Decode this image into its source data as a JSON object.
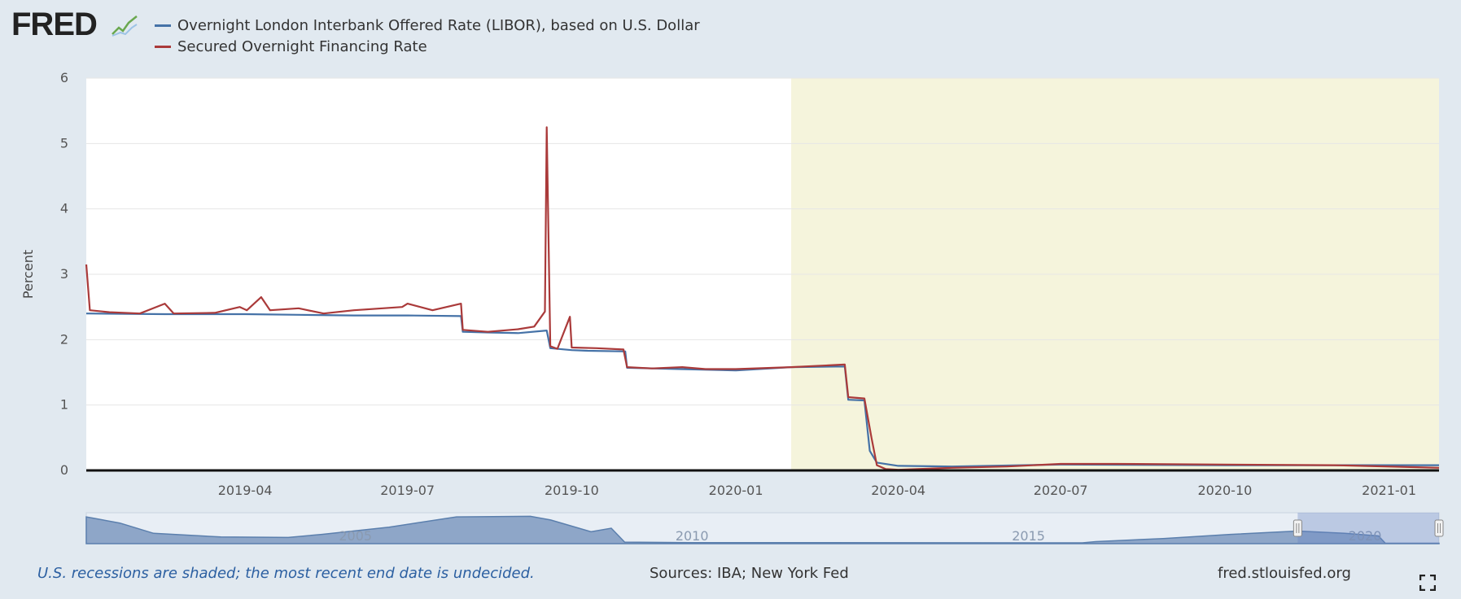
{
  "header": {
    "logo_text": "FRED",
    "logo_icon": "line-chart-icon"
  },
  "colors": {
    "libor": "#4572a7",
    "sofr": "#aa3a3a",
    "recession_fill": "#f5f4dc",
    "navigator_fill": "#8ea6c8",
    "navigator_line": "#5b7fad"
  },
  "chart_data": {
    "type": "line",
    "title": "",
    "xlabel": "",
    "ylabel": "Percent",
    "ylim": [
      0,
      6
    ],
    "yticks": [
      0,
      1,
      2,
      3,
      4,
      5,
      6
    ],
    "xlim": [
      "2019-01-02",
      "2021-01-29"
    ],
    "xticks": [
      {
        "date": "2019-04-01",
        "label": "2019-04"
      },
      {
        "date": "2019-07-01",
        "label": "2019-07"
      },
      {
        "date": "2019-10-01",
        "label": "2019-10"
      },
      {
        "date": "2020-01-01",
        "label": "2020-01"
      },
      {
        "date": "2020-04-01",
        "label": "2020-04"
      },
      {
        "date": "2020-07-01",
        "label": "2020-07"
      },
      {
        "date": "2020-10-01",
        "label": "2020-10"
      },
      {
        "date": "2021-01-01",
        "label": "2021-01"
      }
    ],
    "grid": true,
    "legend_position": "top-left",
    "recession": {
      "start": "2020-02-01",
      "end": "2021-01-29"
    },
    "series": [
      {
        "name": "Overnight London Interbank Offered Rate (LIBOR), based on U.S. Dollar",
        "color": "#4572a7",
        "points": [
          [
            "2019-01-02",
            2.4
          ],
          [
            "2019-02-15",
            2.39
          ],
          [
            "2019-04-01",
            2.39
          ],
          [
            "2019-05-01",
            2.38
          ],
          [
            "2019-06-01",
            2.37
          ],
          [
            "2019-07-01",
            2.37
          ],
          [
            "2019-07-31",
            2.36
          ],
          [
            "2019-08-01",
            2.12
          ],
          [
            "2019-08-15",
            2.11
          ],
          [
            "2019-09-01",
            2.1
          ],
          [
            "2019-09-17",
            2.14
          ],
          [
            "2019-09-19",
            1.87
          ],
          [
            "2019-10-01",
            1.84
          ],
          [
            "2019-10-10",
            1.83
          ],
          [
            "2019-10-31",
            1.82
          ],
          [
            "2019-11-01",
            1.57
          ],
          [
            "2019-12-01",
            1.55
          ],
          [
            "2020-01-01",
            1.53
          ],
          [
            "2020-02-01",
            1.58
          ],
          [
            "2020-03-02",
            1.59
          ],
          [
            "2020-03-04",
            1.08
          ],
          [
            "2020-03-13",
            1.07
          ],
          [
            "2020-03-16",
            0.3
          ],
          [
            "2020-03-20",
            0.12
          ],
          [
            "2020-04-01",
            0.07
          ],
          [
            "2020-05-01",
            0.06
          ],
          [
            "2020-07-01",
            0.09
          ],
          [
            "2020-10-01",
            0.08
          ],
          [
            "2021-01-29",
            0.08
          ]
        ]
      },
      {
        "name": "Secured Overnight Financing Rate",
        "color": "#aa3a3a",
        "points": [
          [
            "2019-01-02",
            3.15
          ],
          [
            "2019-01-04",
            2.45
          ],
          [
            "2019-01-15",
            2.42
          ],
          [
            "2019-02-01",
            2.4
          ],
          [
            "2019-02-15",
            2.55
          ],
          [
            "2019-02-20",
            2.4
          ],
          [
            "2019-03-15",
            2.41
          ],
          [
            "2019-03-29",
            2.5
          ],
          [
            "2019-04-02",
            2.45
          ],
          [
            "2019-04-10",
            2.65
          ],
          [
            "2019-04-15",
            2.45
          ],
          [
            "2019-05-01",
            2.48
          ],
          [
            "2019-05-15",
            2.4
          ],
          [
            "2019-06-01",
            2.45
          ],
          [
            "2019-06-28",
            2.5
          ],
          [
            "2019-07-01",
            2.55
          ],
          [
            "2019-07-15",
            2.45
          ],
          [
            "2019-07-31",
            2.55
          ],
          [
            "2019-08-01",
            2.15
          ],
          [
            "2019-08-15",
            2.12
          ],
          [
            "2019-09-01",
            2.16
          ],
          [
            "2019-09-10",
            2.2
          ],
          [
            "2019-09-16",
            2.43
          ],
          [
            "2019-09-17",
            5.25
          ],
          [
            "2019-09-19",
            1.9
          ],
          [
            "2019-09-23",
            1.86
          ],
          [
            "2019-09-30",
            2.35
          ],
          [
            "2019-10-01",
            1.88
          ],
          [
            "2019-10-15",
            1.87
          ],
          [
            "2019-10-30",
            1.85
          ],
          [
            "2019-11-01",
            1.58
          ],
          [
            "2019-11-15",
            1.56
          ],
          [
            "2019-12-02",
            1.58
          ],
          [
            "2019-12-15",
            1.55
          ],
          [
            "2020-01-01",
            1.55
          ],
          [
            "2020-02-01",
            1.58
          ],
          [
            "2020-03-02",
            1.62
          ],
          [
            "2020-03-04",
            1.12
          ],
          [
            "2020-03-13",
            1.1
          ],
          [
            "2020-03-17",
            0.5
          ],
          [
            "2020-03-20",
            0.08
          ],
          [
            "2020-03-25",
            0.02
          ],
          [
            "2020-04-01",
            0.01
          ],
          [
            "2020-05-01",
            0.04
          ],
          [
            "2020-06-01",
            0.06
          ],
          [
            "2020-07-01",
            0.1
          ],
          [
            "2020-08-01",
            0.1
          ],
          [
            "2020-10-01",
            0.09
          ],
          [
            "2020-12-01",
            0.08
          ],
          [
            "2021-01-15",
            0.05
          ],
          [
            "2021-01-29",
            0.04
          ]
        ]
      }
    ],
    "navigator": {
      "labels": [
        {
          "year": 2005,
          "label": "2005"
        },
        {
          "year": 2010,
          "label": "2010"
        },
        {
          "year": 2015,
          "label": "2015"
        },
        {
          "year": 2020,
          "label": "2020"
        }
      ],
      "range": [
        2001.0,
        2021.1
      ],
      "profile": [
        [
          2001.0,
          5.2
        ],
        [
          2001.5,
          4.0
        ],
        [
          2002.0,
          2.0
        ],
        [
          2003.0,
          1.3
        ],
        [
          2004.0,
          1.2
        ],
        [
          2004.5,
          1.8
        ],
        [
          2005.5,
          3.2
        ],
        [
          2006.5,
          5.2
        ],
        [
          2007.6,
          5.3
        ],
        [
          2007.9,
          4.6
        ],
        [
          2008.5,
          2.3
        ],
        [
          2008.8,
          3.0
        ],
        [
          2009.0,
          0.3
        ],
        [
          2010.0,
          0.2
        ],
        [
          2015.8,
          0.15
        ],
        [
          2016.0,
          0.4
        ],
        [
          2017.0,
          1.0
        ],
        [
          2018.0,
          1.8
        ],
        [
          2019.0,
          2.45
        ],
        [
          2019.7,
          2.0
        ],
        [
          2020.2,
          1.5
        ],
        [
          2020.3,
          0.1
        ],
        [
          2021.1,
          0.08
        ]
      ],
      "selected": [
        2019.0,
        2021.1
      ]
    }
  },
  "footer": {
    "note": "U.S. recessions are shaded; the most recent end date is undecided.",
    "sources": "Sources: IBA; New York Fed",
    "site": "fred.stlouisfed.org"
  }
}
